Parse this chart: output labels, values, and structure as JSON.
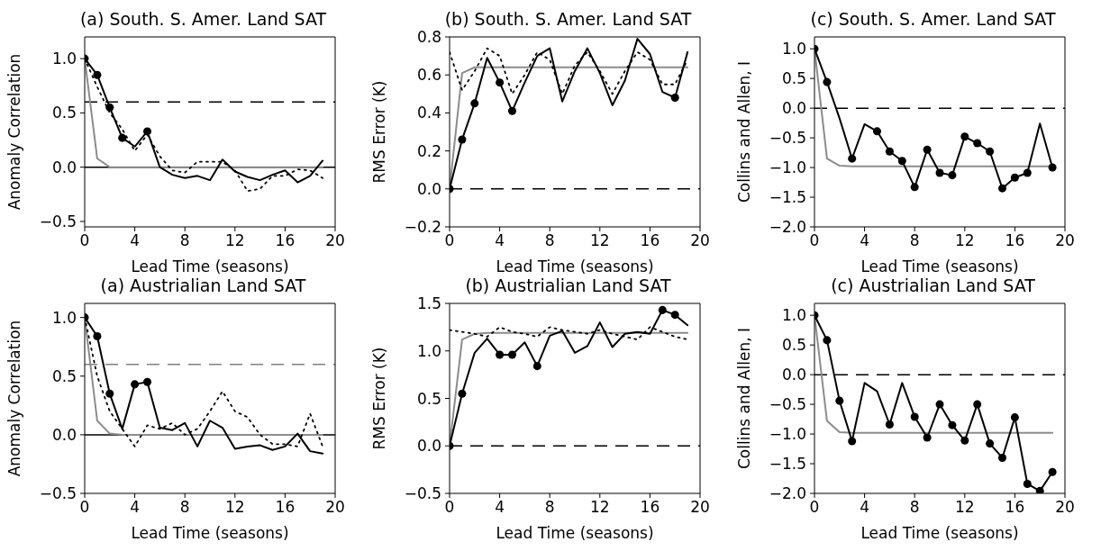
{
  "chart_data": [
    {
      "type": "line",
      "title": "(a) South. S. Amer. Land SAT",
      "xlabel": "Lead Time (seasons)",
      "ylabel": "Anomaly Correlation",
      "xlim": [
        0,
        20
      ],
      "xticks": [
        0,
        4,
        8,
        12,
        16,
        20
      ],
      "ylim": [
        -0.55,
        1.2
      ],
      "yticks": [
        {
          "value": -0.5,
          "label": "−0.5"
        },
        {
          "value": 0,
          "label": "0.0"
        },
        {
          "value": 0.5,
          "label": "0.5"
        },
        {
          "value": 1,
          "label": "1.0"
        }
      ],
      "x": [
        0,
        1,
        2,
        3,
        4,
        5,
        6,
        7,
        8,
        9,
        10,
        11,
        12,
        13,
        14,
        15,
        16,
        17,
        18,
        19
      ],
      "ref_lines": [
        {
          "axis": "y",
          "value": 0.6,
          "color": "#000000",
          "line_style": "dashed"
        },
        {
          "axis": "y",
          "value": 0,
          "color": "#000000",
          "line_style": "solid"
        }
      ],
      "series": [
        {
          "color": "#8c8c8c",
          "line_style": "solid",
          "values": [
            1.0,
            0.08,
            0.0,
            0.0,
            0.0,
            0.0,
            0.0,
            0.0,
            0.0,
            0.0,
            0.0,
            0.0,
            0.0,
            0.0,
            0.0,
            0.0,
            0.0,
            0.0,
            0.0,
            0.0
          ]
        },
        {
          "color": "#000000",
          "line_style": "dotted",
          "values": [
            1.0,
            0.74,
            0.5,
            0.35,
            0.15,
            0.3,
            0.1,
            -0.03,
            -0.05,
            0.05,
            0.05,
            0.05,
            -0.03,
            -0.22,
            -0.2,
            -0.08,
            -0.08,
            -0.02,
            -0.03,
            -0.1
          ]
        },
        {
          "color": "#000000",
          "line_style": "solid",
          "values": [
            1.0,
            0.85,
            0.55,
            0.27,
            0.19,
            0.33,
            0.0,
            -0.07,
            -0.1,
            -0.08,
            -0.12,
            0.07,
            -0.04,
            -0.09,
            -0.12,
            -0.07,
            -0.03,
            -0.14,
            -0.08,
            0.06
          ]
        },
        {
          "type": "scatter",
          "marker": "circle",
          "color": "#000000",
          "x": [
            0,
            1,
            2,
            3,
            5
          ],
          "values": [
            1.0,
            0.85,
            0.55,
            0.27,
            0.33
          ]
        }
      ]
    },
    {
      "type": "line",
      "title": "(b) South. S. Amer. Land SAT",
      "xlabel": "Lead Time (seasons)",
      "ylabel": "RMS Error (K)",
      "xlim": [
        0,
        20
      ],
      "xticks": [
        0,
        4,
        8,
        12,
        16,
        20
      ],
      "ylim": [
        -0.2,
        0.8
      ],
      "yticks": [
        {
          "value": -0.2,
          "label": "−0.2"
        },
        {
          "value": 0,
          "label": "0.0"
        },
        {
          "value": 0.2,
          "label": "0.2"
        },
        {
          "value": 0.4,
          "label": "0.4"
        },
        {
          "value": 0.6,
          "label": "0.6"
        },
        {
          "value": 0.8,
          "label": "0.8"
        }
      ],
      "x": [
        0,
        1,
        2,
        3,
        4,
        5,
        6,
        7,
        8,
        9,
        10,
        11,
        12,
        13,
        14,
        15,
        16,
        17,
        18,
        19
      ],
      "ref_lines": [
        {
          "axis": "y",
          "value": 0,
          "color": "#000000",
          "line_style": "dashed"
        }
      ],
      "series": [
        {
          "color": "#8c8c8c",
          "line_style": "solid",
          "values": [
            0,
            0.61,
            0.64,
            0.64,
            0.64,
            0.64,
            0.64,
            0.64,
            0.64,
            0.64,
            0.64,
            0.64,
            0.64,
            0.64,
            0.64,
            0.64,
            0.64,
            0.64,
            0.64,
            0.64
          ]
        },
        {
          "color": "#000000",
          "line_style": "dotted",
          "values": [
            0.72,
            0.52,
            0.62,
            0.74,
            0.7,
            0.5,
            0.6,
            0.72,
            0.68,
            0.5,
            0.65,
            0.72,
            0.62,
            0.5,
            0.62,
            0.72,
            0.68,
            0.55,
            0.55,
            0.68
          ]
        },
        {
          "color": "#000000",
          "line_style": "solid",
          "values": [
            0,
            0.26,
            0.45,
            0.69,
            0.56,
            0.41,
            0.56,
            0.7,
            0.74,
            0.46,
            0.62,
            0.74,
            0.61,
            0.44,
            0.57,
            0.79,
            0.71,
            0.51,
            0.48,
            0.72
          ]
        },
        {
          "type": "scatter",
          "marker": "circle",
          "color": "#000000",
          "x": [
            0,
            1,
            2,
            4,
            5,
            18
          ],
          "values": [
            0,
            0.26,
            0.45,
            0.56,
            0.41,
            0.48
          ]
        }
      ]
    },
    {
      "type": "line",
      "title": "(c) South. S. Amer. Land SAT",
      "xlabel": "Lead Time (seasons)",
      "ylabel": "Collins and Allen, I",
      "xlim": [
        0,
        20
      ],
      "xticks": [
        0,
        4,
        8,
        12,
        16,
        20
      ],
      "ylim": [
        -2.0,
        1.2
      ],
      "yticks": [
        {
          "value": -2,
          "label": "−2.0"
        },
        {
          "value": -1.5,
          "label": "−1.5"
        },
        {
          "value": -1,
          "label": "−1.0"
        },
        {
          "value": -0.5,
          "label": "−0.5"
        },
        {
          "value": 0,
          "label": "0.0"
        },
        {
          "value": 0.5,
          "label": "0.5"
        },
        {
          "value": 1,
          "label": "1.0"
        }
      ],
      "x": [
        0,
        1,
        2,
        3,
        4,
        5,
        6,
        7,
        8,
        9,
        10,
        11,
        12,
        13,
        14,
        15,
        16,
        17,
        18,
        19
      ],
      "ref_lines": [
        {
          "axis": "y",
          "value": 0,
          "color": "#000000",
          "line_style": "dashed"
        }
      ],
      "series": [
        {
          "color": "#8c8c8c",
          "line_style": "solid",
          "values": [
            1.0,
            -0.85,
            -0.97,
            -0.98,
            -0.98,
            -0.98,
            -0.98,
            -0.98,
            -0.98,
            -0.98,
            -0.98,
            -0.98,
            -0.98,
            -0.98,
            -0.98,
            -0.98,
            -0.98,
            -0.98,
            -0.98,
            -0.98
          ]
        },
        {
          "color": "#000000",
          "line_style": "solid",
          "values": [
            1.0,
            0.44,
            -0.17,
            -0.85,
            -0.27,
            -0.39,
            -0.73,
            -0.89,
            -1.33,
            -0.7,
            -1.09,
            -1.13,
            -0.48,
            -0.59,
            -0.73,
            -1.35,
            -1.17,
            -1.09,
            -0.26,
            -1.0
          ]
        },
        {
          "type": "scatter",
          "marker": "circle",
          "color": "#000000",
          "x": [
            0,
            1,
            3,
            5,
            6,
            7,
            8,
            9,
            10,
            11,
            12,
            13,
            14,
            15,
            16,
            17,
            19
          ],
          "values": [
            1.0,
            0.44,
            -0.85,
            -0.39,
            -0.73,
            -0.89,
            -1.33,
            -0.7,
            -1.09,
            -1.13,
            -0.48,
            -0.59,
            -0.73,
            -1.35,
            -1.17,
            -1.09,
            -1.0
          ]
        }
      ]
    },
    {
      "type": "line",
      "title": "(a) Austrialian Land SAT",
      "xlabel": "Lead Time (seasons)",
      "ylabel": "Anomaly Correlation",
      "xlim": [
        0,
        20
      ],
      "xticks": [
        0,
        4,
        8,
        12,
        16,
        20
      ],
      "ylim": [
        -0.5,
        1.12
      ],
      "yticks": [
        {
          "value": -0.5,
          "label": "−0.5"
        },
        {
          "value": 0,
          "label": "0.0"
        },
        {
          "value": 0.5,
          "label": "0.5"
        },
        {
          "value": 1,
          "label": "1.0"
        }
      ],
      "x": [
        0,
        1,
        2,
        3,
        4,
        5,
        6,
        7,
        8,
        9,
        10,
        11,
        12,
        13,
        14,
        15,
        16,
        17,
        18,
        19
      ],
      "ref_lines": [
        {
          "axis": "y",
          "value": 0.6,
          "color": "#808080",
          "line_style": "dashed"
        },
        {
          "axis": "y",
          "value": 0,
          "color": "#000000",
          "line_style": "solid"
        }
      ],
      "series": [
        {
          "color": "#8c8c8c",
          "line_style": "solid",
          "values": [
            1.0,
            0.12,
            0.01,
            0.0,
            0.0,
            0.0,
            0.0,
            0.0,
            0.0,
            0.0,
            0.0,
            0.0,
            0.0,
            0.0,
            0.0,
            0.0,
            0.0,
            0.0,
            0.0,
            0.0
          ]
        },
        {
          "color": "#000000",
          "line_style": "dotted",
          "values": [
            1.0,
            0.5,
            0.2,
            0.05,
            -0.1,
            0.08,
            0.05,
            0.1,
            0.0,
            0.05,
            0.2,
            0.37,
            0.2,
            0.15,
            0.0,
            -0.08,
            -0.08,
            -0.1,
            0.18,
            -0.1
          ]
        },
        {
          "color": "#000000",
          "line_style": "solid",
          "values": [
            1.0,
            0.84,
            0.35,
            0.05,
            0.43,
            0.45,
            0.06,
            0.04,
            0.1,
            -0.1,
            0.12,
            0.06,
            -0.12,
            -0.1,
            -0.09,
            -0.13,
            -0.1,
            0.01,
            -0.14,
            -0.16
          ]
        },
        {
          "type": "scatter",
          "marker": "circle",
          "color": "#000000",
          "x": [
            0,
            1,
            2,
            4,
            5
          ],
          "values": [
            1.0,
            0.84,
            0.35,
            0.43,
            0.45
          ]
        }
      ]
    },
    {
      "type": "line",
      "title": "(b) Austrialian Land SAT",
      "xlabel": "Lead Time (seasons)",
      "ylabel": "RMS Error (K)",
      "xlim": [
        0,
        20
      ],
      "xticks": [
        0,
        4,
        8,
        12,
        16,
        20
      ],
      "ylim": [
        -0.5,
        1.5
      ],
      "yticks": [
        {
          "value": -0.5,
          "label": "−0.5"
        },
        {
          "value": 0,
          "label": "0.0"
        },
        {
          "value": 0.5,
          "label": "0.5"
        },
        {
          "value": 1,
          "label": "1.0"
        },
        {
          "value": 1.5,
          "label": "1.5"
        }
      ],
      "x": [
        0,
        1,
        2,
        3,
        4,
        5,
        6,
        7,
        8,
        9,
        10,
        11,
        12,
        13,
        14,
        15,
        16,
        17,
        18,
        19
      ],
      "ref_lines": [
        {
          "axis": "y",
          "value": 0,
          "color": "#000000",
          "line_style": "dashed"
        }
      ],
      "series": [
        {
          "color": "#8c8c8c",
          "line_style": "solid",
          "values": [
            0,
            1.12,
            1.18,
            1.19,
            1.19,
            1.19,
            1.19,
            1.19,
            1.19,
            1.19,
            1.19,
            1.19,
            1.19,
            1.19,
            1.19,
            1.19,
            1.19,
            1.19,
            1.19,
            1.19
          ]
        },
        {
          "color": "#000000",
          "line_style": "dotted",
          "values": [
            1.22,
            1.2,
            1.18,
            1.15,
            1.25,
            1.2,
            1.18,
            1.15,
            1.25,
            1.22,
            1.2,
            1.18,
            1.22,
            1.18,
            1.15,
            1.12,
            1.25,
            1.2,
            1.15,
            1.12
          ]
        },
        {
          "color": "#000000",
          "line_style": "solid",
          "values": [
            0,
            0.55,
            0.98,
            1.13,
            0.96,
            0.96,
            1.09,
            0.84,
            1.16,
            1.21,
            0.98,
            1.05,
            1.3,
            1.04,
            1.18,
            1.2,
            1.18,
            1.43,
            1.38,
            1.27
          ]
        },
        {
          "type": "scatter",
          "marker": "circle",
          "color": "#000000",
          "x": [
            0,
            1,
            4,
            5,
            7,
            17,
            18
          ],
          "values": [
            0,
            0.55,
            0.96,
            0.96,
            0.84,
            1.43,
            1.38
          ]
        }
      ]
    },
    {
      "type": "line",
      "title": "(c) Austrialian Land SAT",
      "xlabel": "Lead Time (seasons)",
      "ylabel": "Collins and Allen, I",
      "xlim": [
        0,
        20
      ],
      "xticks": [
        0,
        4,
        8,
        12,
        16,
        20
      ],
      "ylim": [
        -2.0,
        1.2
      ],
      "yticks": [
        {
          "value": -2,
          "label": "−2.0"
        },
        {
          "value": -1.5,
          "label": "−1.5"
        },
        {
          "value": -1,
          "label": "−1.0"
        },
        {
          "value": -0.5,
          "label": "−0.5"
        },
        {
          "value": 0,
          "label": "0.0"
        },
        {
          "value": 0.5,
          "label": "0.5"
        },
        {
          "value": 1,
          "label": "1.0"
        }
      ],
      "x": [
        0,
        1,
        2,
        3,
        4,
        5,
        6,
        7,
        8,
        9,
        10,
        11,
        12,
        13,
        14,
        15,
        16,
        17,
        18,
        19
      ],
      "ref_lines": [
        {
          "axis": "y",
          "value": 0,
          "color": "#000000",
          "line_style": "dashed"
        }
      ],
      "series": [
        {
          "color": "#8c8c8c",
          "line_style": "solid",
          "values": [
            1.0,
            -0.78,
            -0.97,
            -0.98,
            -0.98,
            -0.98,
            -0.98,
            -0.98,
            -0.98,
            -0.98,
            -0.98,
            -0.98,
            -0.98,
            -0.98,
            -0.98,
            -0.98,
            -0.98,
            -0.98,
            -0.98,
            -0.98
          ]
        },
        {
          "color": "#000000",
          "line_style": "solid",
          "values": [
            1.0,
            0.58,
            -0.44,
            -1.12,
            -0.14,
            -0.28,
            -0.84,
            -0.14,
            -0.71,
            -1.06,
            -0.5,
            -0.85,
            -1.11,
            -0.5,
            -1.16,
            -1.4,
            -0.72,
            -1.84,
            -1.96,
            -1.64
          ]
        },
        {
          "type": "scatter",
          "marker": "circle",
          "color": "#000000",
          "x": [
            0,
            1,
            2,
            3,
            6,
            8,
            9,
            10,
            11,
            12,
            13,
            14,
            15,
            16,
            17,
            18,
            19
          ],
          "values": [
            1.0,
            0.58,
            -0.44,
            -1.12,
            -0.84,
            -0.71,
            -1.06,
            -0.5,
            -0.85,
            -1.11,
            -0.5,
            -1.16,
            -1.4,
            -0.72,
            -1.84,
            -1.96,
            -1.64
          ]
        }
      ]
    }
  ]
}
